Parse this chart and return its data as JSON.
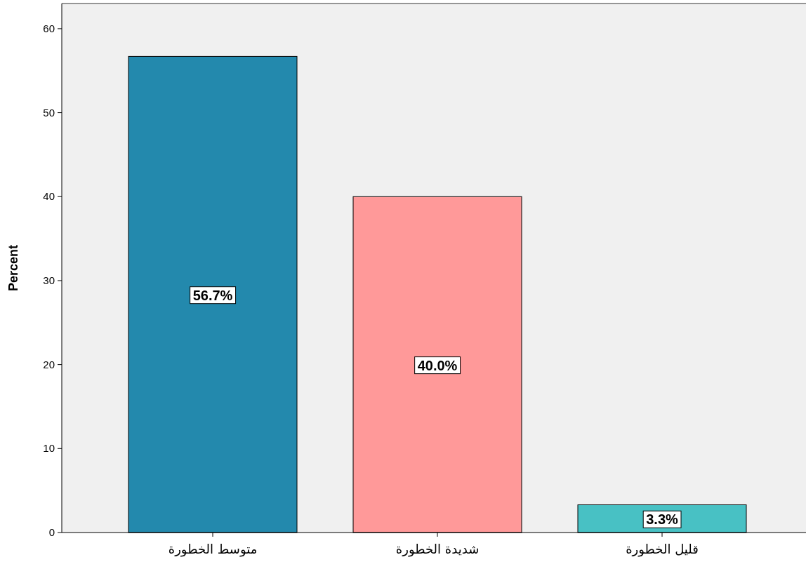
{
  "chart_data": {
    "type": "bar",
    "ylabel": "Percent",
    "categories": [
      "متوسط الخطورة",
      "شديدة الخطورة",
      "قليل الخطورة"
    ],
    "values": [
      56.7,
      40.0,
      3.3
    ],
    "colors": [
      "#2389ad",
      "#ff9999",
      "#48c1c4"
    ],
    "value_labels": [
      "56.7%",
      "40.0%",
      "3.3%"
    ],
    "ylim": [
      0,
      63
    ],
    "yticks": [
      0,
      10,
      20,
      30,
      40,
      50,
      60
    ]
  }
}
